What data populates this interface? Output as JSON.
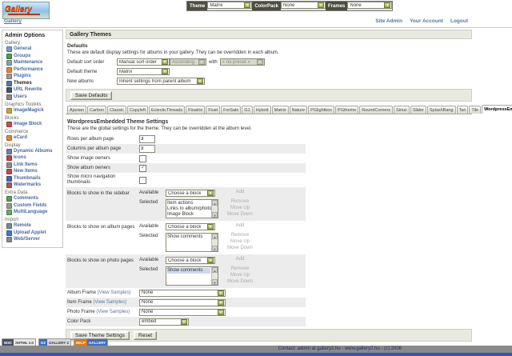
{
  "topbar": {
    "controls": [
      {
        "label": "Theme",
        "value": "Matrix"
      },
      {
        "label": "ColorPack",
        "value": "None"
      },
      {
        "label": "Frames",
        "value": "None"
      }
    ]
  },
  "header": {
    "logo_text": "Gallery",
    "breadcrumb": "Gallery",
    "session_links": [
      "Site Admin",
      "Your Account",
      "Logout"
    ]
  },
  "sidebar": {
    "title": "Admin Options",
    "groups": [
      {
        "label": "Gallery",
        "items": [
          {
            "label": "General",
            "icon": "document-icon",
            "color": "#7d9cc4"
          },
          {
            "label": "Groups",
            "icon": "groups-icon",
            "color": "#4f9b4f"
          },
          {
            "label": "Maintenance",
            "icon": "wrench-icon",
            "color": "#8aa0b8"
          },
          {
            "label": "Performance",
            "icon": "performance-icon",
            "color": "#e08830"
          },
          {
            "label": "Plugins",
            "icon": "plug-icon",
            "color": "#9a9a9a"
          },
          {
            "label": "Themes",
            "icon": "themes-icon",
            "color": "#5577aa",
            "current": true
          },
          {
            "label": "URL Rewrite",
            "icon": "url-rewrite-icon",
            "color": "#445566"
          },
          {
            "label": "Users",
            "icon": "users-icon",
            "color": "#888888"
          }
        ]
      },
      {
        "label": "Graphics Toolkits",
        "items": [
          {
            "label": "ImageMagick",
            "icon": "magic-wand-icon",
            "color": "#c2a542"
          }
        ]
      },
      {
        "label": "Blocks",
        "items": [
          {
            "label": "Image Block",
            "icon": "image-block-icon",
            "color": "#c05050"
          }
        ]
      },
      {
        "label": "Commerce",
        "items": [
          {
            "label": "eCard",
            "icon": "ecard-icon",
            "color": "#d88a3a"
          }
        ]
      },
      {
        "label": "Display",
        "items": [
          {
            "label": "Dynamic Albums",
            "icon": "film-icon",
            "color": "#6a7fbb"
          },
          {
            "label": "Icons",
            "icon": "icons-icon",
            "color": "#c04545"
          },
          {
            "label": "Link Items",
            "icon": "link-icon",
            "color": "#8c8c8c"
          },
          {
            "label": "New Items",
            "icon": "new-items-icon",
            "color": "#cc4444"
          },
          {
            "label": "Thumbnails",
            "icon": "thumbnail-icon",
            "color": "#4466bb"
          },
          {
            "label": "Watermarks",
            "icon": "watermark-icon",
            "color": "#b05555"
          }
        ]
      },
      {
        "label": "Extra Data",
        "items": [
          {
            "label": "Comments",
            "icon": "comment-icon",
            "color": "#55a055"
          },
          {
            "label": "Custom Fields",
            "icon": "custom-fields-icon",
            "color": "#999988"
          },
          {
            "label": "MultiLanguage",
            "icon": "speech-bubble-icon",
            "color": "#66aa66"
          }
        ]
      },
      {
        "label": "Import",
        "items": [
          {
            "label": "Remote",
            "icon": "remote-icon",
            "color": "#778899"
          },
          {
            "label": "Upload Applet",
            "icon": "upload-icon",
            "color": "#4477cc"
          },
          {
            "label": "Web/Server",
            "icon": "globe-icon",
            "color": "#888899"
          }
        ]
      }
    ]
  },
  "main": {
    "page_title": "Gallery Themes",
    "defaults": {
      "title": "Defaults",
      "description": "These are default display settings for albums in your gallery. They can be overridden in each album.",
      "sort": {
        "label": "Default sort order",
        "value": "Manual sort order",
        "direction": "Ascending",
        "with_label": "with",
        "preset": "« no preset »"
      },
      "theme": {
        "label": "Default theme",
        "value": "Matrix"
      },
      "new_albums": {
        "label": "New albums",
        "value": "Inherit settings from parent album"
      },
      "save_label": "Save Defaults"
    },
    "tabs": {
      "items": [
        "Ajaxian",
        "Carbon",
        "Classic",
        "Copyleft",
        "EclecticThreads",
        "Floatrix",
        "Fluid",
        "ForSale",
        "G1",
        "Hybrid",
        "Matrix",
        "Nature",
        "PGlightbox",
        "PGtheme",
        "RoundCorners",
        "Siriux",
        "Slider",
        "SplashBang",
        "Tan",
        "Tile",
        "WordpressEmbedded"
      ],
      "active": "WordpressEmbedded"
    },
    "theme_settings": {
      "title": "WordpressEmbedded Theme Settings",
      "description": "These are the global settings for the theme. They can be overridden at the album level.",
      "rows": [
        {
          "type": "input",
          "label": "Rows per album page",
          "value": "3"
        },
        {
          "type": "input",
          "label": "Columns per album page",
          "value": "3"
        },
        {
          "type": "checkbox",
          "label": "Show image owners",
          "checked": false
        },
        {
          "type": "checkbox",
          "label": "Show album owners",
          "checked": true
        },
        {
          "type": "checkbox",
          "label": "Show micro navigation thumbnails",
          "checked": false
        },
        {
          "type": "blocks",
          "label": "Blocks to show in the sidebar",
          "available_label": "Available",
          "choose_value": "Choose a block",
          "add_label": "Add",
          "selected_label": "Selected",
          "selected": [
            "Item actions",
            "Links to album/photo peers",
            "Image Block"
          ],
          "buttons": [
            "Remove",
            "Move Up",
            "Move Down"
          ]
        },
        {
          "type": "blocks",
          "label": "Blocks to show on album pages",
          "available_label": "Available",
          "choose_value": "Choose a block",
          "add_label": "Add",
          "selected_label": "Selected",
          "selected": [
            "Show comments"
          ],
          "buttons": [
            "Remove",
            "Move Up",
            "Move Down"
          ]
        },
        {
          "type": "blocks",
          "label": "Blocks to show on photo pages",
          "available_label": "Available",
          "choose_value": "Choose a block",
          "add_label": "Add",
          "selected_label": "Selected",
          "selected": [
            "Show comments"
          ],
          "highlight_index": 0,
          "buttons": [
            "Remove",
            "Move Up",
            "Move Down"
          ]
        },
        {
          "type": "select",
          "label": "Album Frame",
          "link_label": "(View Samples)",
          "value": "None"
        },
        {
          "type": "select",
          "label": "Item Frame",
          "link_label": "(View Samples)",
          "value": "None"
        },
        {
          "type": "select",
          "label": "Photo Frame",
          "link_label": "(View Samples)",
          "value": "None"
        },
        {
          "type": "select",
          "label": "Color Pack",
          "value": "embed"
        }
      ],
      "save_label": "Save Theme Settings",
      "reset_label": "Reset"
    }
  },
  "footer": {
    "badges": [
      {
        "left": "W3C",
        "right": "XHTML 1.0",
        "left_bg": "#44516d",
        "left_color": "#ffffff",
        "right_bg": "#e8e8e8",
        "right_color": "#333333"
      },
      {
        "left": "G2",
        "right": "GALLERY 2",
        "left_bg": "#3b6ec5",
        "left_color": "#ffffff",
        "right_bg": "#d8d8d8",
        "right_color": "#333333"
      },
      {
        "left": "HELP",
        "right": "GALLERY",
        "left_bg": "#e07818",
        "left_color": "#ffffff",
        "right_bg": "#3b6ec5",
        "right_color": "#ffffff"
      }
    ],
    "contact": "Contact: admin at gallery2.hu - www.gallery2.hu - (c) 2006"
  },
  "colors": {
    "accent_olive": "#97a549",
    "link_blue": "#5873a8",
    "band_bg": "#e9e9e1",
    "alt_row": "#ececec",
    "footer_bar": "#8a8a8a",
    "bottom_bar": "#3950c0"
  }
}
